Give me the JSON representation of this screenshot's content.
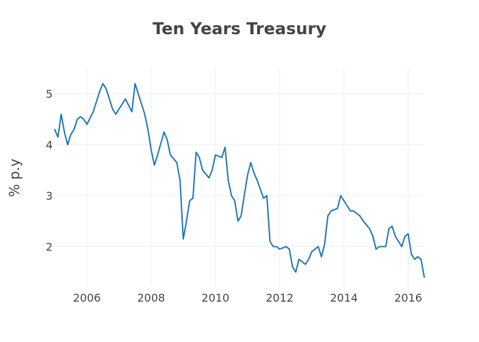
{
  "chart_data": {
    "type": "line",
    "title": "Ten Years Treasury",
    "xlabel": "",
    "ylabel": "% p.y",
    "xlim": [
      2005.0,
      2016.5
    ],
    "ylim": [
      1.2,
      5.5
    ],
    "x_ticks": [
      2006,
      2008,
      2010,
      2012,
      2014,
      2016
    ],
    "x_tick_labels": [
      "2006",
      "2008",
      "2010",
      "2012",
      "2014",
      "2016"
    ],
    "y_ticks": [
      2,
      3,
      4,
      5
    ],
    "y_tick_labels": [
      "2",
      "3",
      "4",
      "5"
    ],
    "grid": true,
    "series": [
      {
        "color": "#1f77b4",
        "x": [
          2005.0,
          2005.1,
          2005.2,
          2005.3,
          2005.4,
          2005.5,
          2005.6,
          2005.7,
          2005.8,
          2005.9,
          2006.0,
          2006.2,
          2006.4,
          2006.5,
          2006.6,
          2006.8,
          2006.9,
          2007.0,
          2007.2,
          2007.4,
          2007.5,
          2007.6,
          2007.8,
          2007.9,
          2008.0,
          2008.1,
          2008.2,
          2008.4,
          2008.5,
          2008.6,
          2008.8,
          2008.9,
          2009.0,
          2009.1,
          2009.2,
          2009.3,
          2009.4,
          2009.5,
          2009.6,
          2009.8,
          2009.9,
          2010.0,
          2010.2,
          2010.3,
          2010.4,
          2010.5,
          2010.6,
          2010.7,
          2010.8,
          2010.9,
          2011.0,
          2011.1,
          2011.2,
          2011.3,
          2011.5,
          2011.6,
          2011.7,
          2011.8,
          2011.9,
          2012.0,
          2012.2,
          2012.3,
          2012.4,
          2012.5,
          2012.6,
          2012.8,
          2012.9,
          2013.0,
          2013.2,
          2013.3,
          2013.4,
          2013.5,
          2013.6,
          2013.8,
          2013.9,
          2014.0,
          2014.2,
          2014.3,
          2014.5,
          2014.6,
          2014.8,
          2014.9,
          2015.0,
          2015.1,
          2015.2,
          2015.3,
          2015.4,
          2015.5,
          2015.6,
          2015.8,
          2015.9,
          2016.0,
          2016.1,
          2016.2,
          2016.3,
          2016.4,
          2016.5
        ],
        "y": [
          4.3,
          4.15,
          4.6,
          4.25,
          4.0,
          4.2,
          4.3,
          4.5,
          4.55,
          4.5,
          4.4,
          4.65,
          5.05,
          5.2,
          5.1,
          4.7,
          4.6,
          4.7,
          4.9,
          4.65,
          5.2,
          5.0,
          4.6,
          4.3,
          3.9,
          3.6,
          3.8,
          4.25,
          4.1,
          3.8,
          3.65,
          3.3,
          2.15,
          2.5,
          2.9,
          2.95,
          3.85,
          3.75,
          3.5,
          3.35,
          3.5,
          3.8,
          3.75,
          3.95,
          3.3,
          3.0,
          2.9,
          2.5,
          2.6,
          3.0,
          3.4,
          3.65,
          3.45,
          3.3,
          2.95,
          3.0,
          2.1,
          2.0,
          2.0,
          1.95,
          2.0,
          1.95,
          1.6,
          1.5,
          1.75,
          1.65,
          1.75,
          1.9,
          2.0,
          1.8,
          2.05,
          2.6,
          2.7,
          2.75,
          3.0,
          2.9,
          2.7,
          2.7,
          2.6,
          2.5,
          2.35,
          2.2,
          1.95,
          2.0,
          2.0,
          2.0,
          2.35,
          2.4,
          2.2,
          2.0,
          2.2,
          2.25,
          1.85,
          1.75,
          1.8,
          1.75,
          1.4
        ]
      }
    ]
  }
}
